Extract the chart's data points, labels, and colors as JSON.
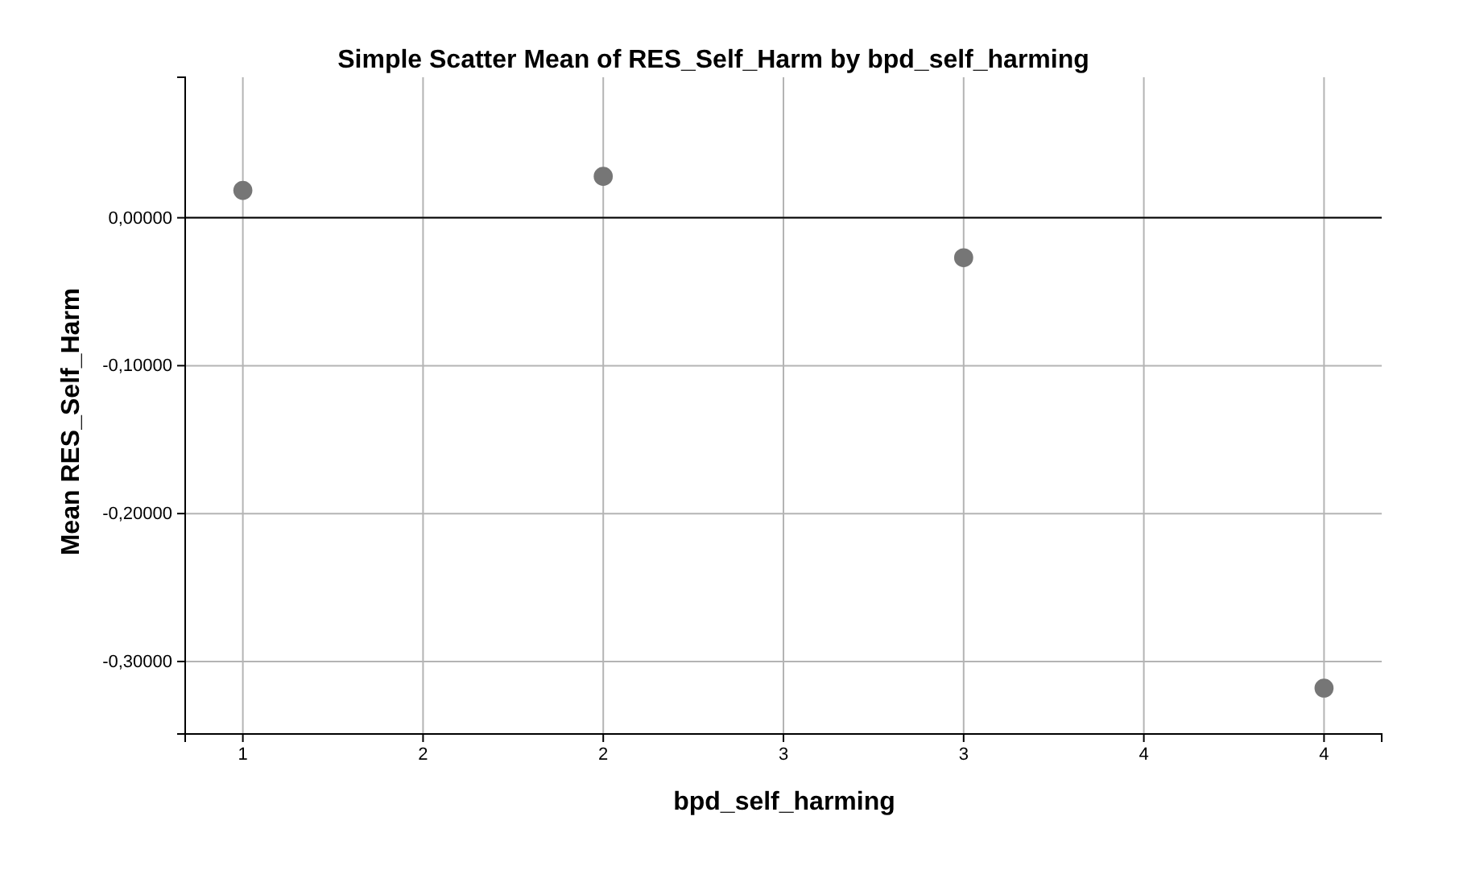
{
  "chart_data": {
    "type": "scatter",
    "title": "Simple Scatter Mean of RES_Self_Harm by bpd_self_harming",
    "xlabel": "bpd_self_harming",
    "ylabel": "Mean RES_Self_Harm",
    "x": [
      1,
      2,
      3,
      4
    ],
    "values": [
      0.0185,
      0.028,
      -0.027,
      -0.318
    ],
    "color": "#767676",
    "marker": "circle",
    "xlim": [
      0.84,
      4.16
    ],
    "xticks": [
      1,
      {
        "value": 1.5,
        "label": "2"
      },
      2,
      {
        "value": 2.5,
        "label": "3"
      },
      3,
      {
        "value": 3.5,
        "label": "4"
      },
      4
    ],
    "ylim": [
      -0.349,
      0.095
    ],
    "yticks": [
      {
        "value": 0,
        "label": "0,00000"
      },
      {
        "value": -0.1,
        "label": "-0,10000"
      },
      {
        "value": -0.2,
        "label": "-0,20000"
      },
      {
        "value": -0.3,
        "label": "-0,30000"
      }
    ],
    "grid": true,
    "ref_lines": [
      {
        "axis": "y",
        "value": 0,
        "color": "#000000"
      }
    ]
  }
}
